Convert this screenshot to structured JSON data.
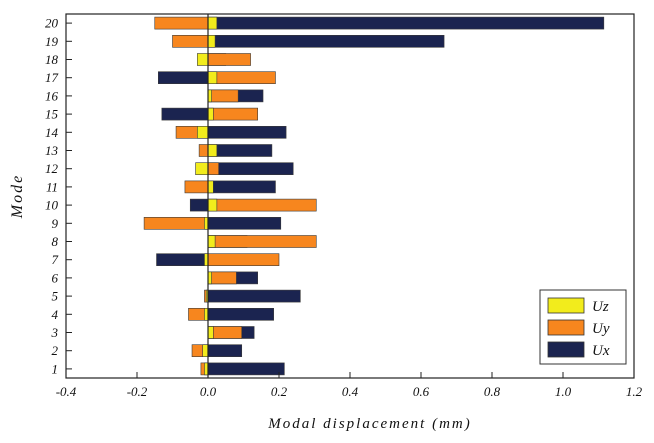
{
  "chart_data": {
    "type": "bar",
    "orientation": "horizontal",
    "stacking": "overlaid",
    "title": "",
    "xlabel": "Modal displacement (mm)",
    "ylabel": "Mode",
    "xlim": [
      -0.4,
      1.2
    ],
    "xticks": [
      -0.4,
      -0.2,
      0.0,
      0.2,
      0.4,
      0.6,
      0.8,
      1.0,
      1.2
    ],
    "xtick_labels": [
      "-0.4",
      "-0.2",
      "0.0",
      "0.2",
      "0.4",
      "0.6",
      "0.8",
      "1.0",
      "1.2"
    ],
    "categories": [
      "1",
      "2",
      "3",
      "4",
      "5",
      "6",
      "7",
      "8",
      "9",
      "10",
      "11",
      "12",
      "13",
      "14",
      "15",
      "16",
      "17",
      "18",
      "19",
      "20"
    ],
    "grid": false,
    "legend_position": "bottom-right",
    "series": [
      {
        "name": "Ux",
        "color": "#1b2450",
        "values": [
          0.215,
          0.095,
          0.13,
          0.185,
          0.26,
          0.14,
          -0.145,
          0.11,
          0.205,
          -0.05,
          0.19,
          0.24,
          0.18,
          0.22,
          -0.13,
          0.155,
          -0.14,
          0.05,
          0.665,
          1.115
        ]
      },
      {
        "name": "Uy",
        "color": "#f7861e",
        "values": [
          -0.02,
          -0.045,
          0.095,
          -0.055,
          -0.01,
          0.08,
          0.2,
          0.305,
          -0.18,
          0.305,
          -0.065,
          0.03,
          -0.025,
          -0.09,
          0.14,
          0.085,
          0.19,
          0.12,
          -0.1,
          -0.15
        ]
      },
      {
        "name": "Uz",
        "color": "#f2ec1c",
        "values": [
          -0.01,
          -0.015,
          0.015,
          -0.01,
          -0.005,
          0.01,
          -0.01,
          0.02,
          -0.01,
          0.025,
          0.015,
          -0.035,
          0.025,
          -0.03,
          0.015,
          0.01,
          0.025,
          -0.03,
          0.02,
          0.025
        ]
      }
    ],
    "legend_order": [
      "Uz",
      "Uy",
      "Ux"
    ]
  }
}
